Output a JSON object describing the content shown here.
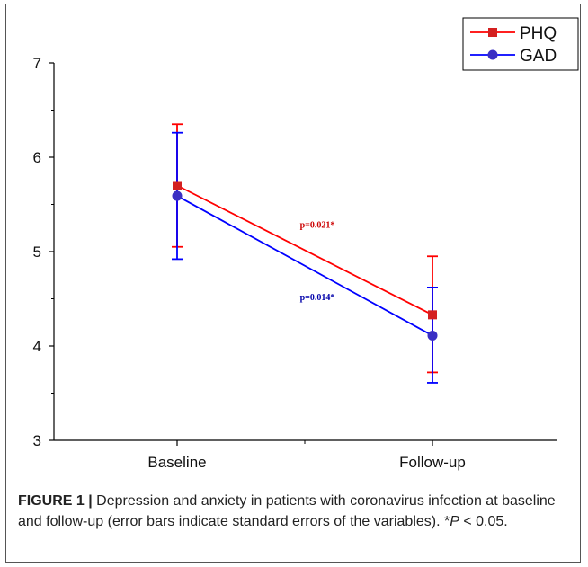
{
  "chart_data": {
    "type": "line",
    "categories": [
      "Baseline",
      "Follow-up"
    ],
    "ylim": [
      3,
      7
    ],
    "yticks": [
      "3",
      "4",
      "5",
      "6",
      "7"
    ],
    "xlabel": "",
    "ylabel": "",
    "grid": false,
    "legend_position": "top-right",
    "series": [
      {
        "name": "PHQ",
        "color": "#ff0000",
        "marker": "square",
        "values": [
          5.7,
          4.33
        ],
        "error_low": [
          5.05,
          3.72
        ],
        "error_high": [
          6.35,
          4.95
        ]
      },
      {
        "name": "GAD",
        "color": "#0000ff",
        "marker": "circle",
        "values": [
          5.59,
          4.11
        ],
        "error_low": [
          4.92,
          3.61
        ],
        "error_high": [
          6.26,
          4.62
        ]
      }
    ],
    "annotations": [
      {
        "text": "p=0.021*",
        "color": "#cc0000",
        "series": "PHQ"
      },
      {
        "text": "p=0.014*",
        "color": "#0000aa",
        "series": "GAD"
      }
    ]
  },
  "caption": {
    "label": "FIGURE 1 |",
    "text": "Depression and anxiety in patients with coronavirus infection at baseline and follow-up (error bars indicate standard errors of the variables).",
    "footnote_star": "*",
    "footnote_p": "P",
    "footnote_rest": " < 0.05."
  }
}
